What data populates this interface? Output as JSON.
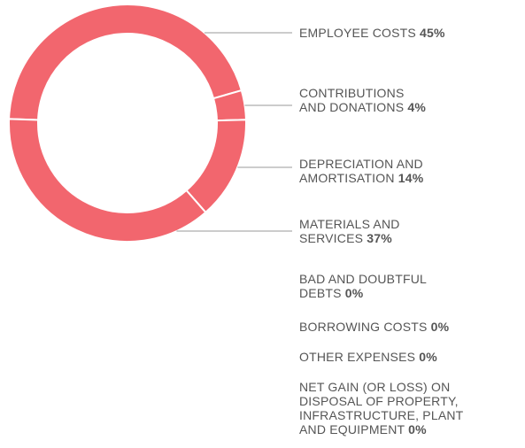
{
  "chart_data": {
    "type": "pie",
    "donut": true,
    "color": "#f2666e",
    "categories": [
      "EMPLOYEE COSTS",
      "CONTRIBUTIONS\nAND DONATIONS",
      "DEPRECIATION AND\nAMORTISATION",
      "MATERIALS AND\nSERVICES",
      "BAD AND DOUBTFUL\nDEBTS",
      "BORROWING COSTS",
      "OTHER EXPENSES",
      "NET GAIN (OR LOSS) ON\nDISPOSAL OF PROPERTY,\nINFRASTRUCTURE, PLANT\nAND EQUIPMENT"
    ],
    "values": [
      45,
      4,
      14,
      37,
      0,
      0,
      0,
      0
    ],
    "value_labels": [
      "45%",
      "4%",
      "14%",
      "37%",
      "0%",
      "0%",
      "0%",
      "0%"
    ]
  }
}
